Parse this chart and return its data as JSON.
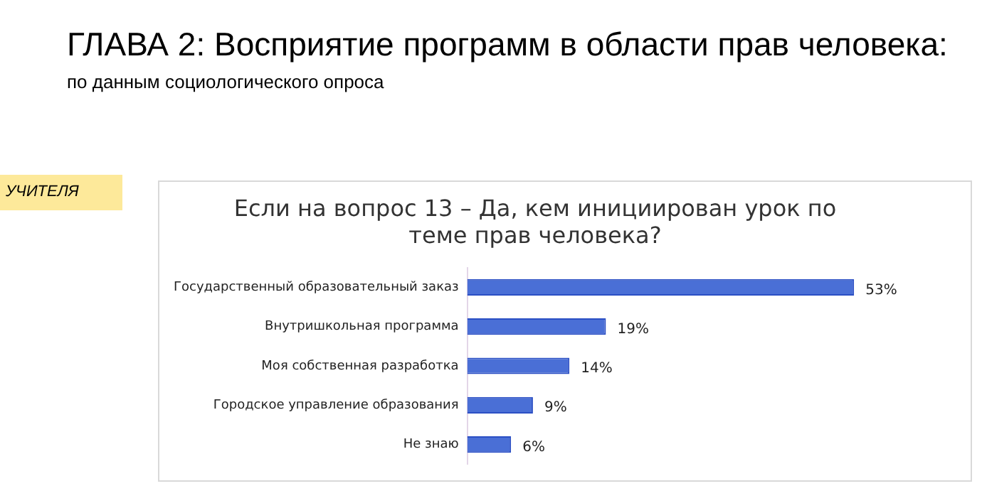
{
  "chart_data": {
    "type": "bar",
    "orientation": "horizontal",
    "title": "Если на вопрос 13 – Да, кем инициирован урок по теме прав человека?",
    "categories": [
      "Государственный образовательный заказ",
      "Внутришкольная программа",
      "Моя собственная разработка",
      "Городское управление образования",
      "Не знаю"
    ],
    "values": [
      53,
      19,
      14,
      9,
      6
    ],
    "value_labels": [
      "53%",
      "19%",
      "14%",
      "9%",
      "6%"
    ],
    "color": "#4a6fd6",
    "tick_labels": "y",
    "grid": false,
    "legend": false,
    "annotations": [
      "ГЛАВА 2: Восприятие программ в области прав человека:",
      "по данным социологического опроса",
      "УЧИТЕЛЯ"
    ]
  }
}
